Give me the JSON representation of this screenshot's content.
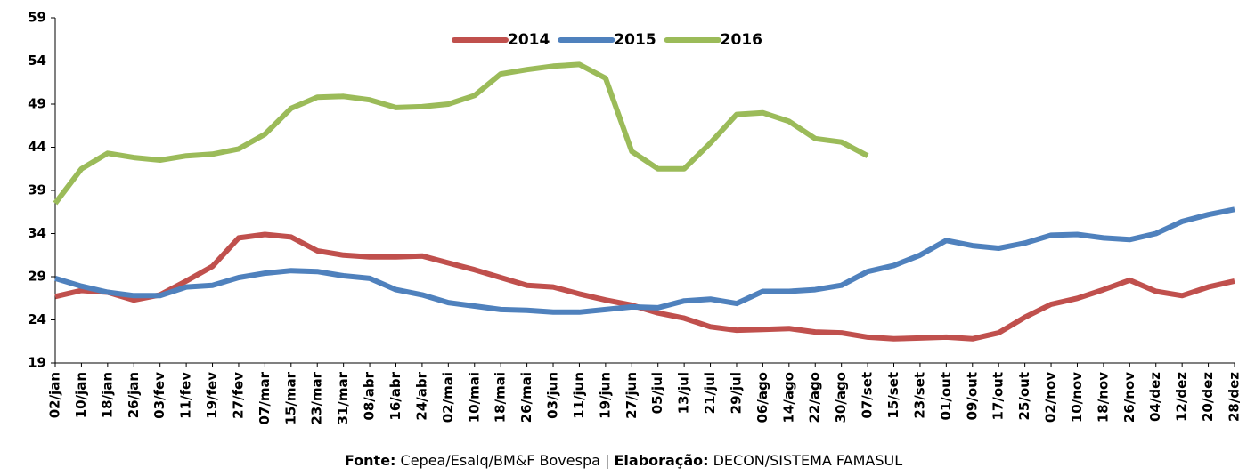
{
  "chart_data": {
    "type": "line",
    "categories": [
      "02/jan",
      "10/jan",
      "18/jan",
      "26/jan",
      "03/fev",
      "11/fev",
      "19/fev",
      "27/fev",
      "07/mar",
      "15/mar",
      "23/mar",
      "31/mar",
      "08/abr",
      "16/abr",
      "24/abr",
      "02/mai",
      "10/mai",
      "18/mai",
      "26/mai",
      "03/jun",
      "11/jun",
      "19/jun",
      "27/jun",
      "05/jul",
      "13/jul",
      "21/jul",
      "29/jul",
      "06/ago",
      "14/ago",
      "22/ago",
      "30/ago",
      "07/set",
      "15/set",
      "23/set",
      "01/out",
      "09/out",
      "17/out",
      "25/out",
      "02/nov",
      "10/nov",
      "18/nov",
      "26/nov",
      "04/dez",
      "12/dez",
      "20/dez",
      "28/dez"
    ],
    "series": [
      {
        "name": "2014",
        "color": "#c0504d",
        "values": [
          26.7,
          27.4,
          27.2,
          26.3,
          26.9,
          28.5,
          30.2,
          33.5,
          33.9,
          33.6,
          32.0,
          31.5,
          31.3,
          31.3,
          31.4,
          30.6,
          29.8,
          28.9,
          28.0,
          27.8,
          27.0,
          26.3,
          25.7,
          24.8,
          24.2,
          23.2,
          22.8,
          22.9,
          23.0,
          22.6,
          22.5,
          22.0,
          21.8,
          21.9,
          22.0,
          21.8,
          22.5,
          24.3,
          25.8,
          26.5,
          27.5,
          28.6,
          27.3,
          26.8,
          27.8,
          28.5
        ]
      },
      {
        "name": "2015",
        "color": "#4f81bd",
        "values": [
          28.8,
          27.9,
          27.2,
          26.8,
          26.8,
          27.8,
          28.0,
          28.9,
          29.4,
          29.7,
          29.6,
          29.1,
          28.8,
          27.5,
          26.9,
          26.0,
          25.6,
          25.2,
          25.1,
          24.9,
          24.9,
          25.2,
          25.5,
          25.4,
          26.2,
          26.4,
          25.9,
          27.3,
          27.3,
          27.5,
          28.0,
          29.6,
          30.3,
          31.5,
          33.2,
          32.6,
          32.3,
          32.9,
          33.8,
          33.9,
          33.5,
          33.3,
          34.0,
          35.4,
          36.2,
          36.8
        ]
      },
      {
        "name": "2016",
        "color": "#9bbb59",
        "values": [
          37.5,
          41.5,
          43.3,
          42.8,
          42.5,
          43.0,
          43.2,
          43.8,
          45.5,
          48.5,
          49.8,
          49.9,
          49.5,
          48.6,
          48.7,
          49.0,
          50.0,
          52.5,
          53.0,
          53.4,
          53.6,
          52.0,
          43.5,
          41.5,
          41.5,
          44.5,
          47.8,
          48.0,
          47.0,
          45.0,
          44.6,
          43.0,
          null,
          null,
          null,
          null,
          null,
          null,
          null,
          null,
          null,
          null,
          null,
          null,
          null,
          null
        ]
      }
    ],
    "ylim": [
      19,
      59
    ],
    "yticks": [
      19,
      24,
      29,
      34,
      39,
      44,
      49,
      54,
      59
    ],
    "grid": false,
    "legend": "top"
  },
  "footer": {
    "source_label": "Fonte:",
    "source": "Cepea/Esalq/BM&F Bovespa",
    "separator": "|",
    "credit_label": "Elaboração:",
    "credit": "DECON/SISTEMA FAMASUL"
  }
}
